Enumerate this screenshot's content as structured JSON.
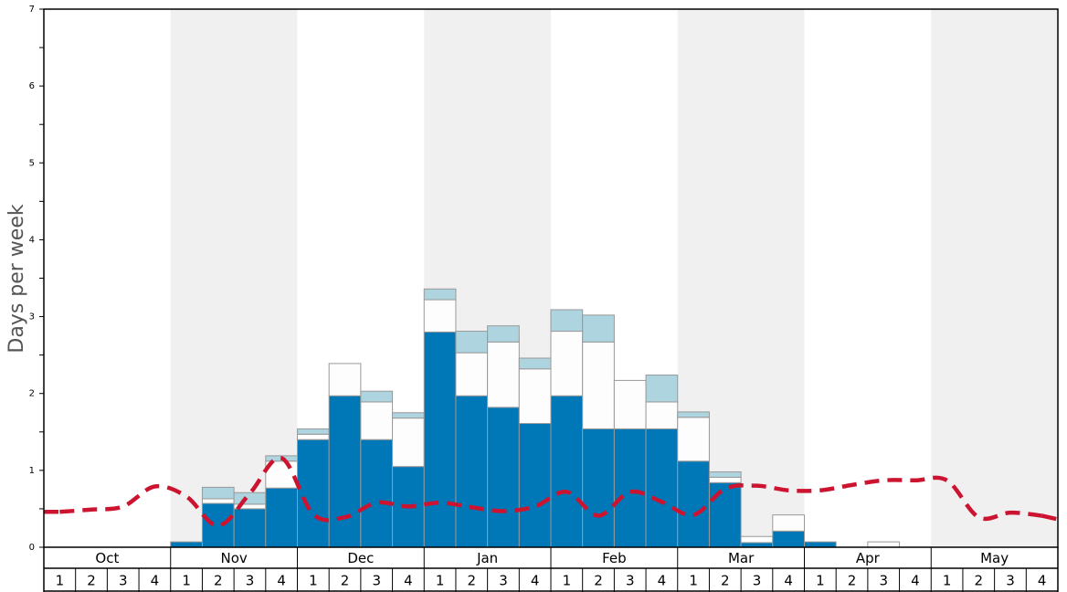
{
  "chart_data": {
    "type": "bar",
    "stacked": true,
    "title": "",
    "xlabel": "",
    "ylabel": "Days per week",
    "ylim": [
      0,
      7
    ],
    "yticks": [
      0,
      1,
      2,
      3,
      4,
      5,
      6,
      7
    ],
    "months": [
      "Oct",
      "Nov",
      "Dec",
      "Jan",
      "Feb",
      "Mar",
      "Apr",
      "May"
    ],
    "weeks": [
      "1",
      "2",
      "3",
      "4"
    ],
    "shaded_months": [
      "Nov",
      "Jan",
      "Mar",
      "May"
    ],
    "grid": false,
    "colors": {
      "dark": "#0077b6",
      "white": "#fdfdfd",
      "light": "#aed4e0",
      "line": "#cc1430",
      "shade": "#f0f0f0",
      "bar_edge": "#999999"
    },
    "series": [
      {
        "values": [
          0,
          0,
          0,
          0,
          0.07,
          0.57,
          0.5,
          0.77,
          1.4,
          1.97,
          1.4,
          1.05,
          2.8,
          1.97,
          1.82,
          1.61,
          1.97,
          1.54,
          1.54,
          1.54,
          1.12,
          0.84,
          0.06,
          0.21,
          0.07,
          0,
          0,
          0,
          0,
          0,
          0,
          0
        ]
      },
      {
        "values": [
          0,
          0,
          0,
          0,
          0,
          0.06,
          0.06,
          0.35,
          0.07,
          0.42,
          0.49,
          0.63,
          0.42,
          0.56,
          0.85,
          0.71,
          0.84,
          1.13,
          0.63,
          0.35,
          0.57,
          0.07,
          0.08,
          0.21,
          0,
          0,
          0.07,
          0,
          0,
          0,
          0,
          0
        ]
      },
      {
        "values": [
          0,
          0,
          0,
          0,
          0,
          0.15,
          0.15,
          0.07,
          0.07,
          0,
          0.14,
          0.07,
          0.14,
          0.28,
          0.21,
          0.14,
          0.28,
          0.35,
          0,
          0.35,
          0.07,
          0.07,
          0,
          0,
          0,
          0,
          0,
          0,
          0,
          0,
          0,
          0
        ]
      },
      {
        "type": "line",
        "values": [
          0.46,
          0.49,
          0.53,
          0.79,
          0.66,
          0.28,
          0.7,
          1.16,
          0.43,
          0.39,
          0.58,
          0.53,
          0.58,
          0.52,
          0.47,
          0.53,
          0.72,
          0.41,
          0.72,
          0.59,
          0.42,
          0.76,
          0.8,
          0.74,
          0.74,
          0.81,
          0.87,
          0.87,
          0.87,
          0.39,
          0.45,
          0.41
        ]
      }
    ]
  }
}
